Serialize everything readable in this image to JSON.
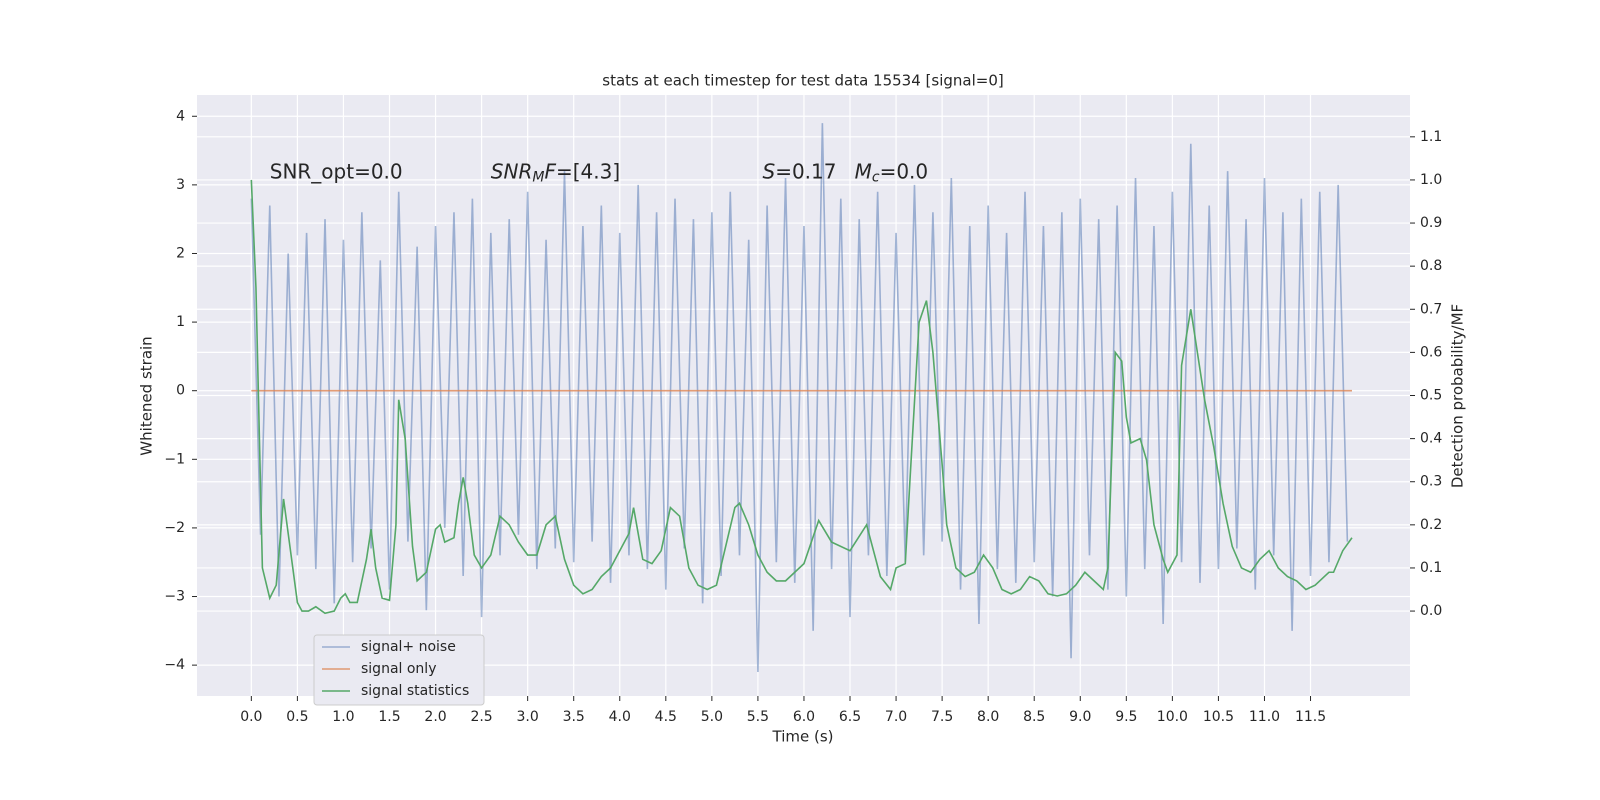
{
  "chart_data": {
    "type": "line",
    "title": "stats at each timestep for test data 15534 [signal=0]",
    "xlabel": "Time (s)",
    "ylabel": "Whitened strain",
    "y2label": "Detection probability/MF",
    "xlim": [
      -0.59,
      12.58
    ],
    "ylim": [
      -4.45,
      4.31
    ],
    "y2lim": [
      -0.197,
      1.197
    ],
    "xticks": [
      {
        "value": 0,
        "label": "0.0"
      },
      0.5,
      {
        "value": 1,
        "label": "1.0"
      },
      1.5,
      {
        "value": 2,
        "label": "2.0"
      },
      2.5,
      {
        "value": 3,
        "label": "3.0"
      },
      3.5,
      {
        "value": 4,
        "label": "4.0"
      },
      4.5,
      {
        "value": 5,
        "label": "5.0"
      },
      5.5,
      {
        "value": 6,
        "label": "6.0"
      },
      6.5,
      {
        "value": 7,
        "label": "7.0"
      },
      7.5,
      {
        "value": 8,
        "label": "8.0"
      },
      8.5,
      {
        "value": 9,
        "label": "9.0"
      },
      9.5,
      {
        "value": 10,
        "label": "10.0"
      },
      10.5,
      {
        "value": 11,
        "label": "11.0"
      },
      11.5
    ],
    "yticks": [
      {
        "value": -4,
        "label": "−4"
      },
      {
        "value": -3,
        "label": "−3"
      },
      {
        "value": -2,
        "label": "−2"
      },
      {
        "value": -1,
        "label": "−1"
      },
      0,
      1,
      2,
      3,
      4
    ],
    "y2ticks": [
      {
        "value": 0,
        "label": "0.0"
      },
      0.1,
      0.2,
      0.3,
      0.4,
      0.5,
      0.6,
      0.7,
      0.8,
      0.9,
      {
        "value": 1,
        "label": "1.0"
      },
      1.1
    ],
    "grid": true,
    "legend_loc": "lower left",
    "annotations": [
      [
        {
          "text": "SNR_opt=0.0",
          "style": "normal"
        }
      ],
      [
        {
          "text": "SNR",
          "style": "italic"
        },
        {
          "text": "M",
          "style": "italic-sub"
        },
        {
          "text": "F",
          "style": "italic"
        },
        {
          "text": "=[4.3]",
          "style": "normal"
        }
      ],
      [
        {
          "text": "S",
          "style": "italic"
        },
        {
          "text": "=0.17",
          "style": "normal"
        }
      ],
      [
        {
          "text": "M",
          "style": "italic"
        },
        {
          "text": "c",
          "style": "italic-sub"
        },
        {
          "text": "=0.0",
          "style": "normal"
        }
      ]
    ],
    "series": [
      {
        "name": "signal+ noise",
        "color": "#4c72b0",
        "alpha": 0.5,
        "axis": "y",
        "x": [
          0.0,
          0.1,
          0.2,
          0.3,
          0.4,
          0.5,
          0.6,
          0.7,
          0.8,
          0.9,
          1.0,
          1.1,
          1.2,
          1.3,
          1.4,
          1.5,
          1.6,
          1.7,
          1.8,
          1.9,
          2.0,
          2.1,
          2.2,
          2.3,
          2.4,
          2.5,
          2.6,
          2.7,
          2.8,
          2.9,
          3.0,
          3.1,
          3.2,
          3.3,
          3.4,
          3.5,
          3.6,
          3.7,
          3.8,
          3.9,
          4.0,
          4.1,
          4.2,
          4.3,
          4.4,
          4.5,
          4.6,
          4.7,
          4.8,
          4.9,
          5.0,
          5.1,
          5.2,
          5.3,
          5.4,
          5.5,
          5.6,
          5.7,
          5.8,
          5.9,
          6.0,
          6.1,
          6.2,
          6.3,
          6.4,
          6.5,
          6.6,
          6.7,
          6.8,
          6.9,
          7.0,
          7.1,
          7.2,
          7.3,
          7.4,
          7.5,
          7.6,
          7.7,
          7.8,
          7.9,
          8.0,
          8.1,
          8.2,
          8.3,
          8.4,
          8.5,
          8.6,
          8.7,
          8.8,
          8.9,
          9.0,
          9.1,
          9.2,
          9.3,
          9.4,
          9.5,
          9.6,
          9.7,
          9.8,
          9.9,
          10.0,
          10.1,
          10.2,
          10.3,
          10.4,
          10.5,
          10.6,
          10.7,
          10.8,
          10.9,
          11.0,
          11.1,
          11.2,
          11.3,
          11.4,
          11.5,
          11.6,
          11.7,
          11.8,
          11.9
        ],
        "values": [
          2.8,
          -2.1,
          2.7,
          -3.0,
          2.0,
          -2.4,
          2.3,
          -2.6,
          2.5,
          -3.1,
          2.2,
          -2.5,
          2.6,
          -2.3,
          1.9,
          -2.9,
          2.9,
          -2.2,
          2.1,
          -3.2,
          2.4,
          -2.0,
          2.6,
          -2.7,
          2.8,
          -3.3,
          2.3,
          -2.4,
          2.5,
          -2.1,
          2.9,
          -2.6,
          2.2,
          -2.3,
          3.2,
          -2.5,
          2.4,
          -2.2,
          2.7,
          -2.8,
          2.3,
          -2.4,
          3.0,
          -2.6,
          2.6,
          -2.9,
          2.8,
          -2.3,
          2.5,
          -3.1,
          2.6,
          -2.7,
          2.9,
          -2.4,
          2.2,
          -4.1,
          2.7,
          -2.5,
          3.1,
          -2.8,
          2.4,
          -3.5,
          3.9,
          -2.6,
          2.8,
          -3.3,
          2.5,
          -2.4,
          2.9,
          -2.7,
          2.3,
          -2.5,
          3.0,
          -2.4,
          2.6,
          -2.2,
          3.1,
          -2.9,
          2.4,
          -3.4,
          2.7,
          -2.6,
          2.3,
          -2.8,
          2.9,
          -2.5,
          2.4,
          -3.0,
          2.6,
          -3.9,
          2.8,
          -2.4,
          2.5,
          -2.9,
          2.7,
          -3.0,
          3.1,
          -2.6,
          2.4,
          -3.4,
          2.9,
          -2.5,
          3.6,
          -2.8,
          2.7,
          -2.6,
          3.2,
          -2.3,
          2.5,
          -2.9,
          3.1,
          -2.4,
          2.6,
          -3.5,
          2.8,
          -2.7,
          2.9,
          -2.5,
          3.0,
          -2.2
        ]
      },
      {
        "name": "signal only",
        "color": "#dd8452",
        "alpha": 0.8,
        "axis": "y",
        "x": [
          0.0,
          11.95
        ],
        "values": [
          0,
          0
        ]
      },
      {
        "name": "signal statistics",
        "color": "#55a868",
        "alpha": 1,
        "axis": "y2",
        "x": [
          0.0,
          0.05,
          0.12,
          0.2,
          0.27,
          0.35,
          0.45,
          0.5,
          0.55,
          0.62,
          0.7,
          0.8,
          0.9,
          0.97,
          1.02,
          1.07,
          1.15,
          1.25,
          1.3,
          1.35,
          1.42,
          1.5,
          1.57,
          1.6,
          1.67,
          1.75,
          1.8,
          1.9,
          2.0,
          2.05,
          2.1,
          2.2,
          2.25,
          2.3,
          2.35,
          2.42,
          2.5,
          2.6,
          2.7,
          2.8,
          2.9,
          3.0,
          3.1,
          3.2,
          3.3,
          3.4,
          3.5,
          3.6,
          3.7,
          3.8,
          3.9,
          4.0,
          4.1,
          4.15,
          4.25,
          4.35,
          4.45,
          4.55,
          4.65,
          4.75,
          4.85,
          4.95,
          5.05,
          5.15,
          5.25,
          5.3,
          5.4,
          5.5,
          5.6,
          5.7,
          5.8,
          5.9,
          6.0,
          6.16,
          6.3,
          6.5,
          6.68,
          6.83,
          6.94,
          7.0,
          7.1,
          7.15,
          7.25,
          7.33,
          7.4,
          7.5,
          7.55,
          7.65,
          7.75,
          7.85,
          7.95,
          8.05,
          8.15,
          8.25,
          8.35,
          8.45,
          8.55,
          8.65,
          8.75,
          8.85,
          8.95,
          9.05,
          9.15,
          9.25,
          9.3,
          9.38,
          9.45,
          9.5,
          9.55,
          9.65,
          9.72,
          9.8,
          9.9,
          9.95,
          10.05,
          10.1,
          10.2,
          10.35,
          10.45,
          10.55,
          10.65,
          10.75,
          10.85,
          10.95,
          11.05,
          11.15,
          11.25,
          11.35,
          11.45,
          11.55,
          11.65,
          11.7,
          11.75,
          11.85,
          11.95
        ],
        "values": [
          1.0,
          0.75,
          0.1,
          0.03,
          0.06,
          0.26,
          0.1,
          0.02,
          0.0,
          0.0,
          0.01,
          -0.005,
          0.0,
          0.03,
          0.04,
          0.02,
          0.02,
          0.12,
          0.19,
          0.1,
          0.03,
          0.025,
          0.2,
          0.49,
          0.4,
          0.15,
          0.07,
          0.09,
          0.19,
          0.2,
          0.16,
          0.17,
          0.25,
          0.31,
          0.25,
          0.13,
          0.1,
          0.13,
          0.22,
          0.2,
          0.16,
          0.13,
          0.13,
          0.2,
          0.22,
          0.12,
          0.06,
          0.04,
          0.05,
          0.08,
          0.1,
          0.14,
          0.18,
          0.24,
          0.12,
          0.11,
          0.14,
          0.24,
          0.22,
          0.1,
          0.06,
          0.05,
          0.06,
          0.15,
          0.24,
          0.25,
          0.2,
          0.13,
          0.09,
          0.07,
          0.07,
          0.09,
          0.11,
          0.21,
          0.16,
          0.14,
          0.2,
          0.08,
          0.05,
          0.1,
          0.11,
          0.3,
          0.67,
          0.72,
          0.6,
          0.34,
          0.2,
          0.1,
          0.08,
          0.09,
          0.13,
          0.1,
          0.05,
          0.04,
          0.05,
          0.08,
          0.07,
          0.04,
          0.035,
          0.04,
          0.06,
          0.09,
          0.07,
          0.05,
          0.1,
          0.6,
          0.58,
          0.45,
          0.39,
          0.4,
          0.35,
          0.2,
          0.12,
          0.09,
          0.13,
          0.57,
          0.7,
          0.49,
          0.38,
          0.25,
          0.15,
          0.1,
          0.09,
          0.12,
          0.14,
          0.1,
          0.08,
          0.07,
          0.05,
          0.06,
          0.08,
          0.09,
          0.09,
          0.14,
          0.17
        ]
      }
    ]
  }
}
